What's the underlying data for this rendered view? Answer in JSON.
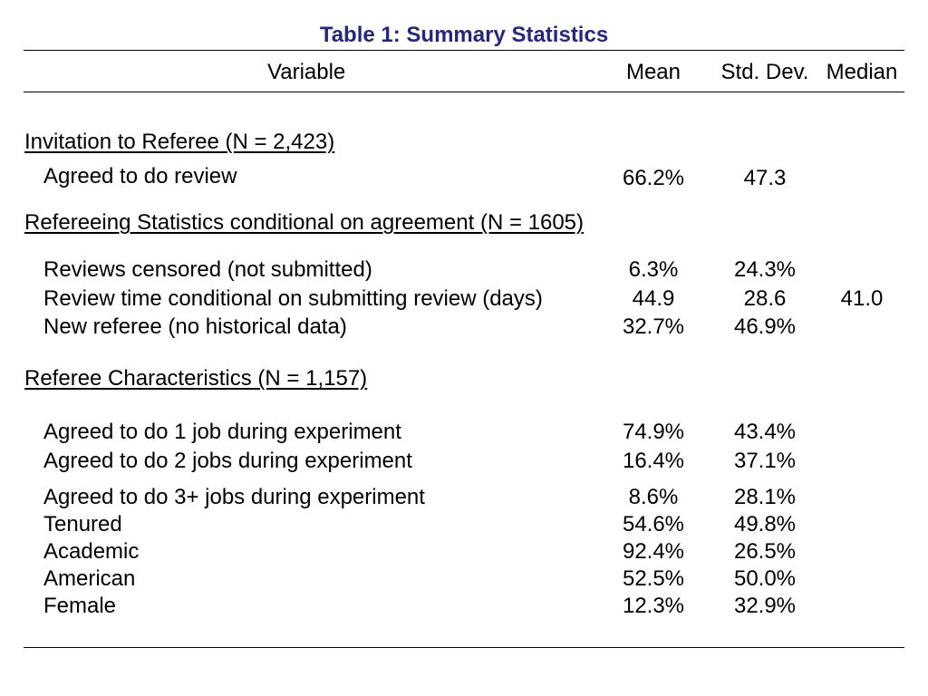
{
  "table": {
    "title": "Table 1: Summary Statistics",
    "title_color": "#27277a",
    "headers": {
      "variable": "Variable",
      "mean": "Mean",
      "std_dev": "Std. Dev.",
      "median": "Median"
    },
    "sections": [
      {
        "title": "Invitation to Referee (N = 2,423)",
        "rows": [
          {
            "label": "Agreed to do review",
            "mean": "66.2%",
            "std_dev": "47.3",
            "median": ""
          }
        ]
      },
      {
        "title": "Refereeing Statistics conditional on agreement (N = 1605)",
        "rows": [
          {
            "label": "Reviews censored (not submitted)",
            "mean": "6.3%",
            "std_dev": "24.3%",
            "median": ""
          },
          {
            "label": "Review time conditional on submitting review (days)",
            "mean": "44.9",
            "std_dev": "28.6",
            "median": "41.0"
          },
          {
            "label": "New referee (no historical data)",
            "mean": "32.7%",
            "std_dev": "46.9%",
            "median": ""
          }
        ]
      },
      {
        "title": "Referee Characteristics (N = 1,157)",
        "rows": [
          {
            "label": "Agreed to do 1 job during experiment",
            "mean": "74.9%",
            "std_dev": "43.4%",
            "median": ""
          },
          {
            "label": "Agreed to do 2 jobs during experiment",
            "mean": "16.4%",
            "std_dev": "37.1%",
            "median": ""
          },
          {
            "label": "Agreed to do 3+ jobs during experiment",
            "mean": "8.6%",
            "std_dev": "28.1%",
            "median": ""
          },
          {
            "label": "Tenured",
            "mean": "54.6%",
            "std_dev": "49.8%",
            "median": ""
          },
          {
            "label": "Academic",
            "mean": "92.4%",
            "std_dev": "26.5%",
            "median": ""
          },
          {
            "label": "American",
            "mean": "52.5%",
            "std_dev": "50.0%",
            "median": ""
          },
          {
            "label": "Female",
            "mean": "12.3%",
            "std_dev": "32.9%",
            "median": ""
          }
        ]
      }
    ]
  }
}
